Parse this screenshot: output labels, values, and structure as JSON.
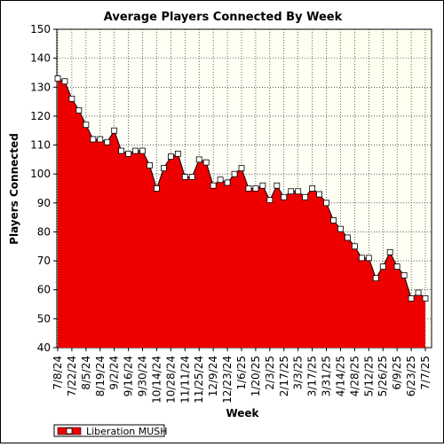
{
  "chart_data": {
    "type": "area",
    "title": "Average Players Connected By Week",
    "xlabel": "Week",
    "ylabel": "Players Connected",
    "ylim": [
      40,
      150
    ],
    "yticks": [
      40,
      50,
      60,
      70,
      80,
      90,
      100,
      110,
      120,
      130,
      140,
      150
    ],
    "xtick_labels": [
      "7/8/24",
      "7/22/24",
      "8/5/24",
      "8/19/24",
      "9/2/24",
      "9/16/24",
      "9/30/24",
      "10/14/24",
      "10/28/24",
      "11/11/24",
      "11/25/24",
      "12/9/24",
      "12/23/24",
      "1/6/25",
      "1/20/25",
      "2/3/25",
      "2/17/25",
      "3/3/25",
      "3/17/25",
      "3/31/25",
      "4/14/25",
      "4/28/25",
      "5/12/25",
      "5/26/25",
      "6/9/25",
      "6/23/25",
      "7/7/25"
    ],
    "series": [
      {
        "name": "Liberation MUSH",
        "color": "#ee0000",
        "values": [
          133,
          132,
          126,
          122,
          117,
          112,
          112,
          111,
          115,
          108,
          107,
          108,
          108,
          103,
          95,
          102,
          106,
          107,
          99,
          99,
          105,
          104,
          96,
          98,
          97,
          100,
          102,
          95,
          95,
          96,
          91,
          96,
          92,
          94,
          94,
          92,
          95,
          93,
          90,
          84,
          81,
          78,
          75,
          71,
          71,
          64,
          68,
          73,
          68,
          65,
          57,
          59,
          57
        ]
      }
    ],
    "grid": true,
    "legend_position": "bottom-left",
    "plot_background": "#ffffee"
  }
}
